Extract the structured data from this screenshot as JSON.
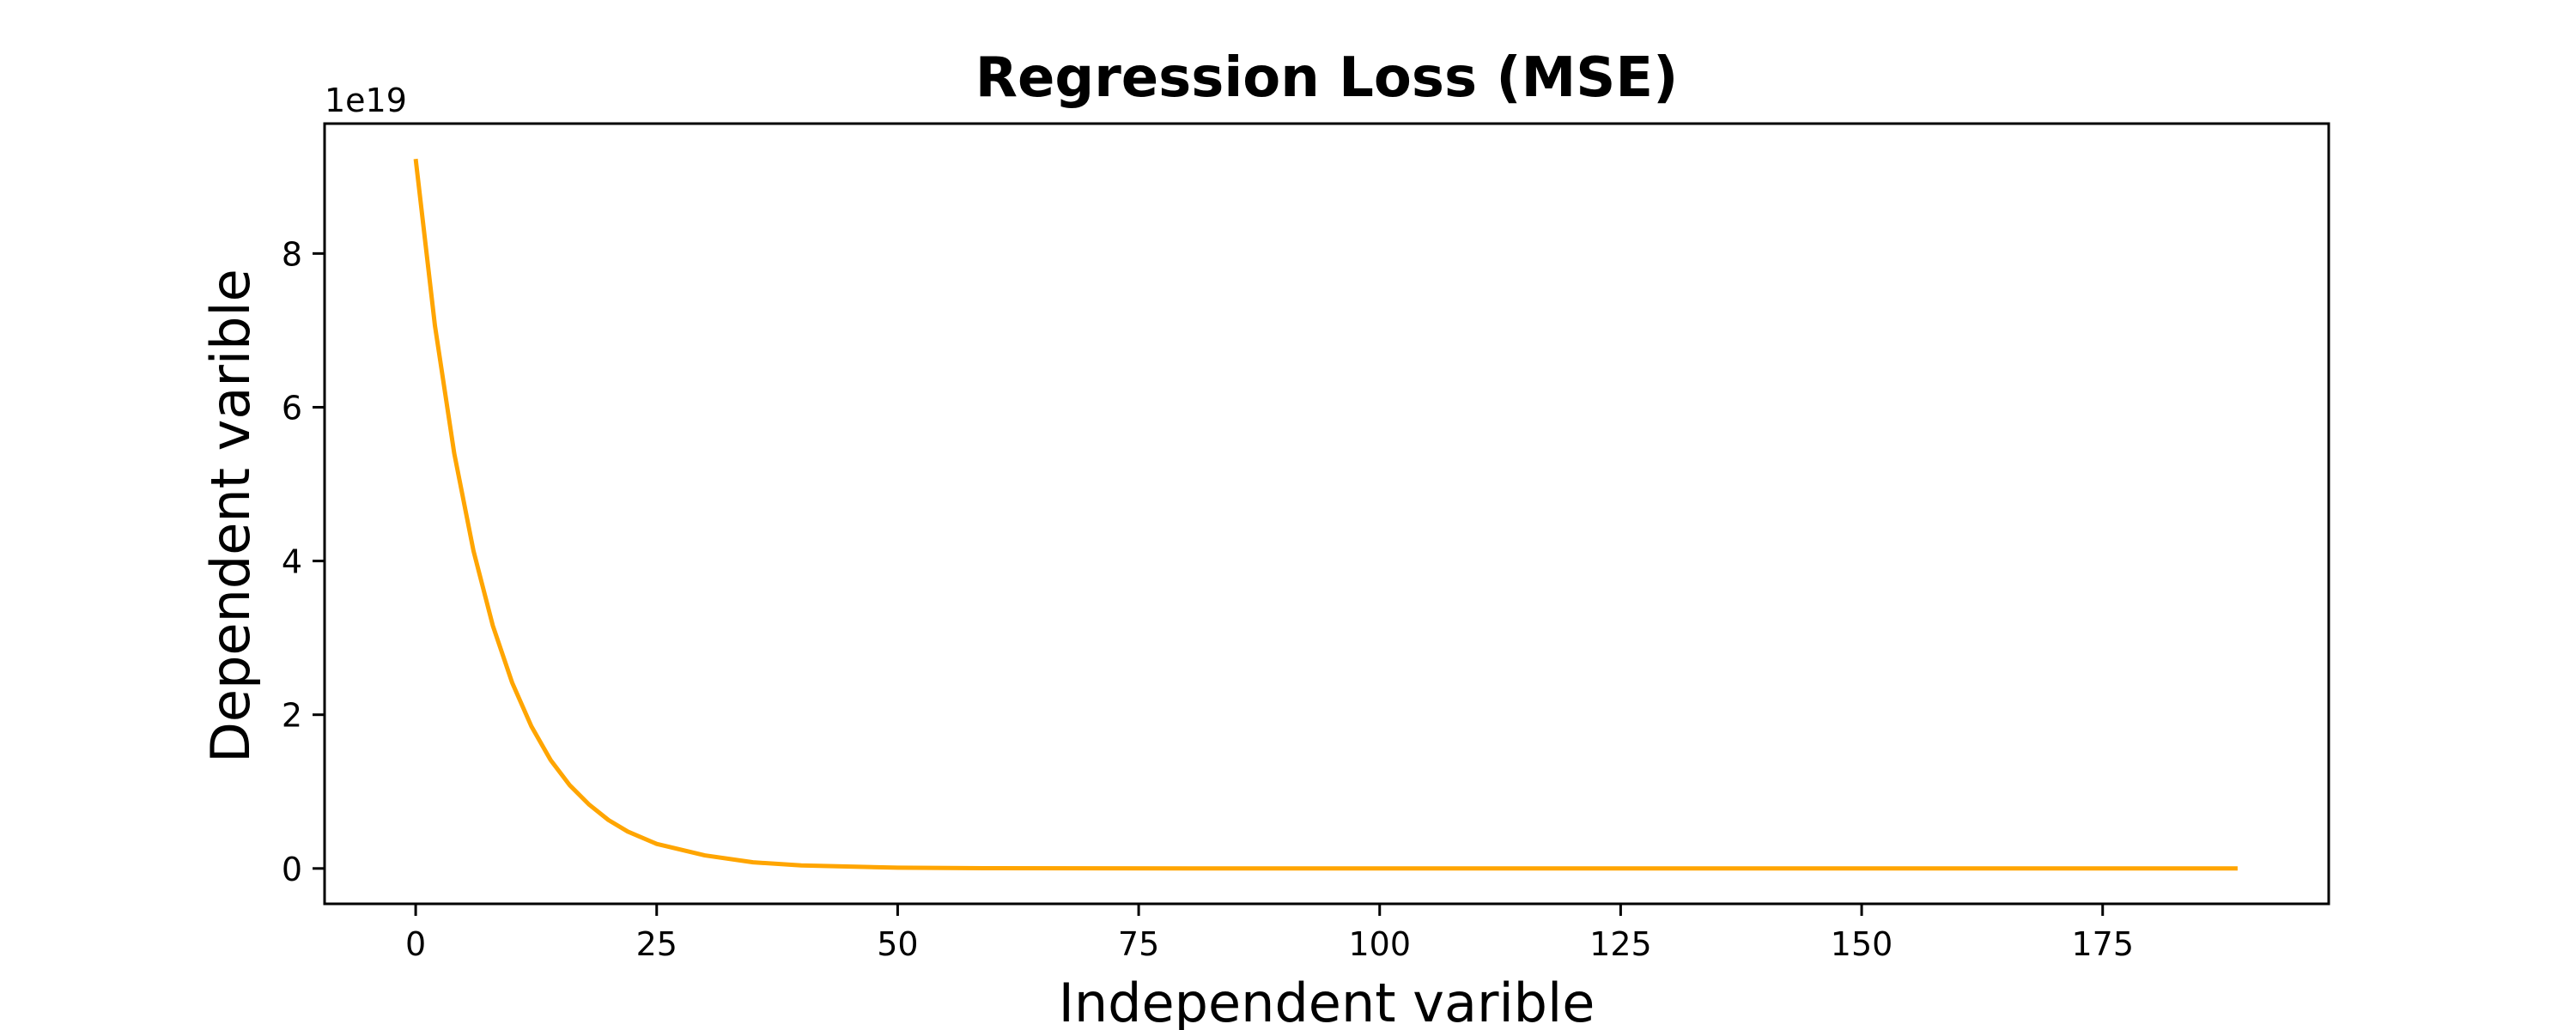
{
  "chart_data": {
    "type": "line",
    "title": "Regression Loss (MSE)",
    "xlabel": "Independent varible",
    "ylabel": "Dependent varible",
    "y_offset_label": "1e19",
    "xlim": [
      -9.45,
      198.45
    ],
    "ylim": [
      -0.46,
      9.69
    ],
    "y_scale": 1e+19,
    "xticks": [
      0,
      25,
      50,
      75,
      100,
      125,
      150,
      175
    ],
    "yticks": [
      0,
      2,
      4,
      6,
      8
    ],
    "grid": false,
    "series": [
      {
        "color": "#FFA500",
        "x": [
          0,
          2,
          4,
          6,
          8,
          10,
          12,
          14,
          16,
          18,
          20,
          22,
          25,
          30,
          35,
          40,
          50,
          60,
          80,
          100,
          120,
          150,
          189
        ],
        "y": [
          9.23,
          7.06,
          5.4,
          4.13,
          3.16,
          2.42,
          1.85,
          1.41,
          1.08,
          0.83,
          0.63,
          0.48,
          0.32,
          0.17,
          0.08,
          0.04,
          0.01,
          0.003,
          0.0002,
          1e-05,
          0,
          0,
          0
        ]
      }
    ]
  }
}
